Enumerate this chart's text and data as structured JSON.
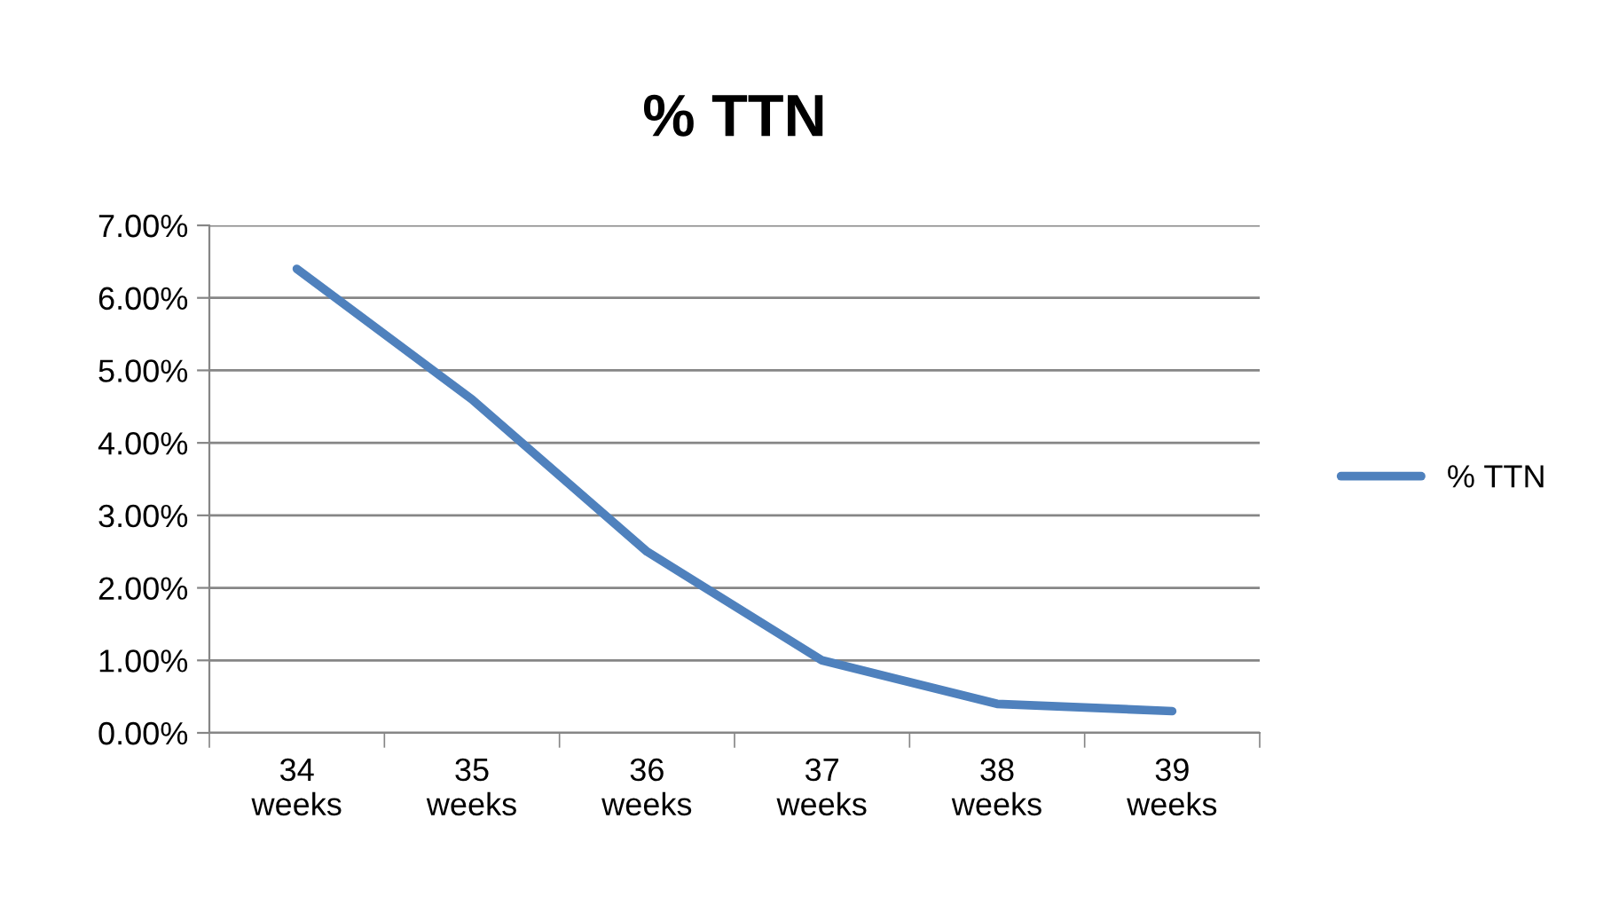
{
  "chart_data": {
    "type": "line",
    "title": "% TTN",
    "categories": [
      "34\nweeks",
      "35\nweeks",
      "36\nweeks",
      "37\nweeks",
      "38\nweeks",
      "39\nweeks"
    ],
    "series": [
      {
        "name": "% TTN",
        "color": "#4f81bd",
        "values": [
          6.4,
          4.6,
          2.5,
          1.0,
          0.4,
          0.3
        ]
      }
    ],
    "ylim": [
      0,
      7
    ],
    "yticks": [
      {
        "value": 0,
        "label": "0.00%"
      },
      {
        "value": 1,
        "label": "1.00%"
      },
      {
        "value": 2,
        "label": "2.00%"
      },
      {
        "value": 3,
        "label": "3.00%"
      },
      {
        "value": 4,
        "label": "4.00%"
      },
      {
        "value": 5,
        "label": "5.00%"
      },
      {
        "value": 6,
        "label": "6.00%"
      },
      {
        "value": 7,
        "label": "7.00%"
      }
    ],
    "grid": "y",
    "legend": "right",
    "marker": "none",
    "line_style": "solid"
  }
}
